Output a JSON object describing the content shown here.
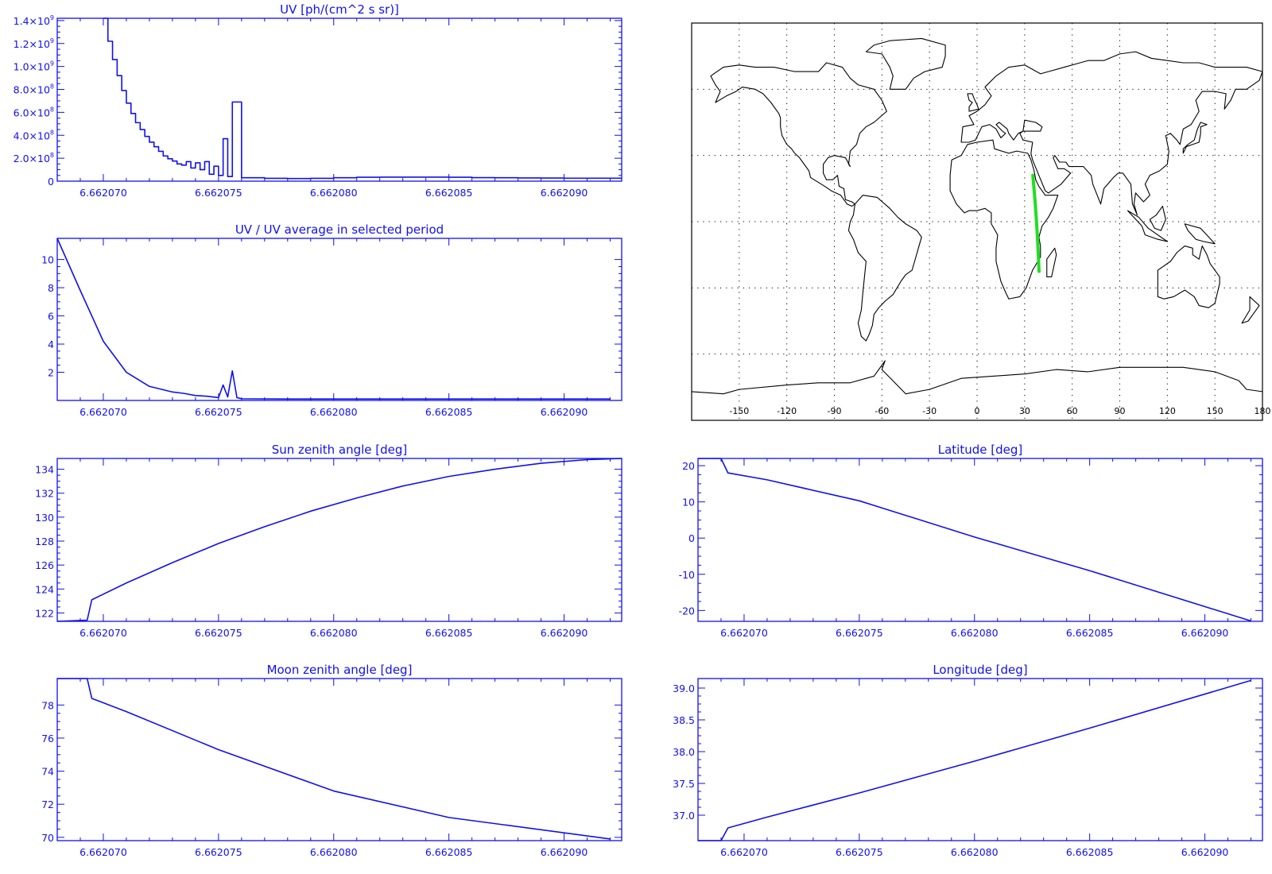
{
  "x_ticks": [
    "6.662070",
    "6.662075",
    "6.662080",
    "6.662085",
    "6.662090"
  ],
  "colors": {
    "plot": "#1010ee",
    "map_line": "#000000",
    "track": "#22dd22"
  },
  "map": {
    "lon_ticks": [
      -150,
      -120,
      -90,
      -60,
      -30,
      0,
      30,
      60,
      90,
      120,
      150,
      180
    ],
    "lon_labels": [
      "-150",
      "-120",
      "-90",
      "-60",
      "-30",
      "0",
      "30",
      "60",
      "90",
      "120",
      "150",
      "180"
    ],
    "track": [
      [
        35.2,
        21.0
      ],
      [
        36.5,
        10.0
      ],
      [
        37.5,
        0.0
      ],
      [
        38.3,
        -10.0
      ],
      [
        39.1,
        -22.5
      ]
    ]
  },
  "chart_data": [
    {
      "id": "uv",
      "type": "step",
      "title": "UV [ph/(cm^2 s sr)]",
      "xlim": [
        6.662068,
        6.6620925
      ],
      "ylim": [
        0,
        1420000000.0
      ],
      "yticks": [
        0,
        200000000.0,
        400000000.0,
        600000000.0,
        800000000.0,
        1000000000.0,
        1200000000.0,
        1400000000.0
      ],
      "ytick_labels": [
        {
          "m": "0",
          "e": ""
        },
        {
          "m": "2.0×10",
          "e": "8"
        },
        {
          "m": "4.0×10",
          "e": "8"
        },
        {
          "m": "6.0×10",
          "e": "8"
        },
        {
          "m": "8.0×10",
          "e": "8"
        },
        {
          "m": "1.0×10",
          "e": "9"
        },
        {
          "m": "1.2×10",
          "e": "9"
        },
        {
          "m": "1.4×10",
          "e": "9"
        }
      ],
      "x": [
        6.66207,
        6.6620702,
        6.6620704,
        6.6620706,
        6.6620708,
        6.662071,
        6.6620712,
        6.6620714,
        6.6620716,
        6.6620718,
        6.662072,
        6.6620722,
        6.6620724,
        6.6620726,
        6.6620728,
        6.662073,
        6.6620732,
        6.6620734,
        6.6620736,
        6.6620738,
        6.662074,
        6.6620742,
        6.6620744,
        6.6620746,
        6.6620748,
        6.662075,
        6.6620752,
        6.6620754,
        6.6620756,
        6.662076,
        6.662077,
        6.662078,
        6.662079,
        6.66208,
        6.662081,
        6.662082,
        6.662083,
        6.662084,
        6.662085,
        6.662086,
        6.662087,
        6.662088,
        6.662089,
        6.66209,
        6.662091,
        6.662092,
        6.6620925
      ],
      "y": [
        1420000000.0,
        1220000000.0,
        1060000000.0,
        920000000.0,
        790000000.0,
        680000000.0,
        590000000.0,
        510000000.0,
        450000000.0,
        390000000.0,
        340000000.0,
        300000000.0,
        260000000.0,
        220000000.0,
        195000000.0,
        175000000.0,
        150000000.0,
        140000000.0,
        170000000.0,
        115000000.0,
        160000000.0,
        100000000.0,
        170000000.0,
        60000000.0,
        130000000.0,
        50000000.0,
        370000000.0,
        40000000.0,
        690000000.0,
        30000000.0,
        25000000.0,
        23000000.0,
        25000000.0,
        30000000.0,
        34000000.0,
        35000000.0,
        35000000.0,
        35000000.0,
        34000000.0,
        31000000.0,
        30000000.0,
        28000000.0,
        27000000.0,
        26000000.0,
        26000000.0,
        26000000.0,
        26000000.0
      ]
    },
    {
      "id": "uvnorm",
      "type": "line",
      "title": "UV / UV average in selected period",
      "xlim": [
        6.662068,
        6.6620925
      ],
      "ylim": [
        0,
        11.5
      ],
      "yticks": [
        2,
        4,
        6,
        8,
        10
      ],
      "ytick_labels": [
        {
          "m": "2",
          "e": ""
        },
        {
          "m": "4",
          "e": ""
        },
        {
          "m": "6",
          "e": ""
        },
        {
          "m": "8",
          "e": ""
        },
        {
          "m": "10",
          "e": ""
        }
      ],
      "x": [
        6.662068,
        6.662069,
        6.66207,
        6.662071,
        6.662072,
        6.662073,
        6.6620735,
        6.662074,
        6.6620745,
        6.662075,
        6.6620752,
        6.6620754,
        6.6620756,
        6.6620758,
        6.662076,
        6.662078,
        6.662085,
        6.662092
      ],
      "y": [
        11.5,
        7.8,
        4.2,
        2.0,
        1.0,
        0.6,
        0.5,
        0.35,
        0.3,
        0.2,
        1.1,
        0.25,
        2.1,
        0.2,
        0.12,
        0.1,
        0.1,
        0.1
      ]
    },
    {
      "id": "sza",
      "type": "line",
      "title": "Sun zenith angle [deg]",
      "xlim": [
        6.662068,
        6.6620925
      ],
      "ylim": [
        121.3,
        134.9
      ],
      "yticks": [
        122,
        124,
        126,
        128,
        130,
        132,
        134
      ],
      "ytick_labels": [
        {
          "m": "122",
          "e": ""
        },
        {
          "m": "124",
          "e": ""
        },
        {
          "m": "126",
          "e": ""
        },
        {
          "m": "128",
          "e": ""
        },
        {
          "m": "130",
          "e": ""
        },
        {
          "m": "132",
          "e": ""
        },
        {
          "m": "134",
          "e": ""
        }
      ],
      "x": [
        6.662068,
        6.6620693,
        6.6620695,
        6.662071,
        6.662073,
        6.662075,
        6.662077,
        6.662079,
        6.662081,
        6.662083,
        6.662085,
        6.662087,
        6.662089,
        6.662091,
        6.6620925
      ],
      "y": [
        121.3,
        121.4,
        123.1,
        124.5,
        126.2,
        127.8,
        129.2,
        130.5,
        131.6,
        132.6,
        133.4,
        134.0,
        134.5,
        134.8,
        134.9
      ]
    },
    {
      "id": "lat",
      "type": "line",
      "title": "Latitude [deg]",
      "xlim": [
        6.662068,
        6.6620925
      ],
      "ylim": [
        -23,
        22
      ],
      "yticks": [
        -20,
        -10,
        0,
        10,
        20
      ],
      "ytick_labels": [
        {
          "m": "-20",
          "e": ""
        },
        {
          "m": "-10",
          "e": ""
        },
        {
          "m": "0",
          "e": ""
        },
        {
          "m": "10",
          "e": ""
        },
        {
          "m": "20",
          "e": ""
        }
      ],
      "x": [
        6.662068,
        6.662069,
        6.6620693,
        6.662071,
        6.662075,
        6.66208,
        6.662085,
        6.662092
      ],
      "y": [
        22,
        22,
        18,
        16.1,
        10.3,
        0.3,
        -9.0,
        -22.9
      ]
    },
    {
      "id": "mza",
      "type": "line",
      "title": "Moon zenith angle [deg]",
      "xlim": [
        6.662068,
        6.6620925
      ],
      "ylim": [
        69.8,
        79.6
      ],
      "yticks": [
        70,
        72,
        74,
        76,
        78
      ],
      "ytick_labels": [
        {
          "m": "70",
          "e": ""
        },
        {
          "m": "72",
          "e": ""
        },
        {
          "m": "74",
          "e": ""
        },
        {
          "m": "76",
          "e": ""
        },
        {
          "m": "78",
          "e": ""
        }
      ],
      "x": [
        6.662068,
        6.6620693,
        6.6620695,
        6.662071,
        6.662075,
        6.66208,
        6.662085,
        6.662092
      ],
      "y": [
        79.6,
        79.6,
        78.4,
        77.6,
        75.3,
        72.8,
        71.2,
        69.9
      ],
      "smooth": true
    },
    {
      "id": "lon",
      "type": "line",
      "title": "Longitude [deg]",
      "xlim": [
        6.662068,
        6.6620925
      ],
      "ylim": [
        36.6,
        39.15
      ],
      "yticks": [
        37.0,
        37.5,
        38.0,
        38.5,
        39.0
      ],
      "ytick_labels": [
        {
          "m": "37.0",
          "e": ""
        },
        {
          "m": "37.5",
          "e": ""
        },
        {
          "m": "38.0",
          "e": ""
        },
        {
          "m": "38.5",
          "e": ""
        },
        {
          "m": "39.0",
          "e": ""
        }
      ],
      "x": [
        6.662068,
        6.662069,
        6.6620693,
        6.662071,
        6.662075,
        6.66208,
        6.662085,
        6.662092
      ],
      "y": [
        36.6,
        36.6,
        36.8,
        36.97,
        37.35,
        37.85,
        38.37,
        39.12
      ]
    }
  ]
}
